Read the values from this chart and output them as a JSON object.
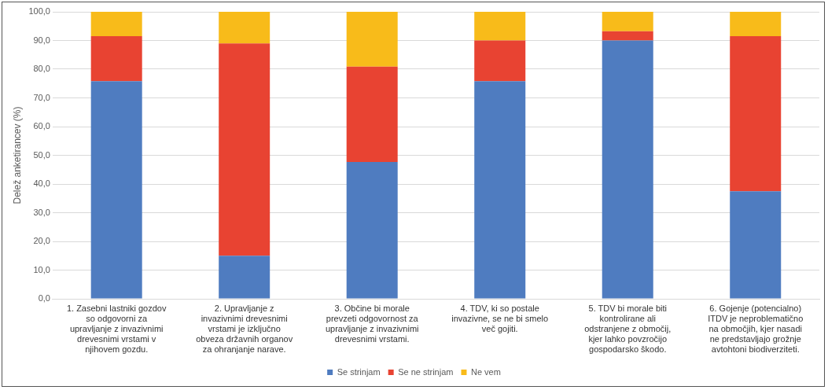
{
  "chart_data": {
    "type": "bar",
    "stacked": true,
    "ylabel": "Delež anketirancev (%)",
    "categories": [
      "1. Zasebni lastniki gozdov so odgovorni za upravljanje z invazivnimi drevesnimi vrstami v njihovem gozdu.",
      "2. Upravljanje z invazivnimi drevesnimi vrstami je izključno obveza državnih organov za ohranjanje narave.",
      "3. Občine bi morale prevzeti odgovornost za upravljanje z invazivnimi drevesnimi vrstami.",
      "4. TDV, ki so postale invazivne, se ne bi smelo več gojiti.",
      "5. TDV bi morale biti kontrolirane ali odstranjene z območij, kjer lahko povzročijo gospodarsko škodo.",
      "6. Gojenje (potencialno) ITDV je neproblematično na območjih, kjer nasadi ne predstavljajo grožnje avtohtoni biodiverziteti."
    ],
    "series": [
      {
        "name": "Se strinjam",
        "color": "#4f7cc0",
        "values": [
          75.8,
          15,
          47.7,
          75.8,
          90,
          37.5
        ]
      },
      {
        "name": "Se ne strinjam",
        "color": "#e84332",
        "values": [
          15.7,
          74,
          33.2,
          14.2,
          3.2,
          54
        ]
      },
      {
        "name": "Ne vem",
        "color": "#f8bb1a",
        "values": [
          8.5,
          11,
          19.1,
          10,
          6.8,
          8.5
        ]
      }
    ],
    "ylim": [
      0,
      100
    ],
    "yticks": [
      {
        "value": 0,
        "label": "0,0"
      },
      {
        "value": 10,
        "label": "10,0"
      },
      {
        "value": 20,
        "label": "20,0"
      },
      {
        "value": 30,
        "label": "30,0"
      },
      {
        "value": 40,
        "label": "40,0"
      },
      {
        "value": 50,
        "label": "50,0"
      },
      {
        "value": 60,
        "label": "60,0"
      },
      {
        "value": 70,
        "label": "70,0"
      },
      {
        "value": 80,
        "label": "80,0"
      },
      {
        "value": 90,
        "label": "90,0"
      },
      {
        "value": 100,
        "label": "100,0"
      }
    ],
    "grid": "y",
    "legend": "bottom"
  }
}
